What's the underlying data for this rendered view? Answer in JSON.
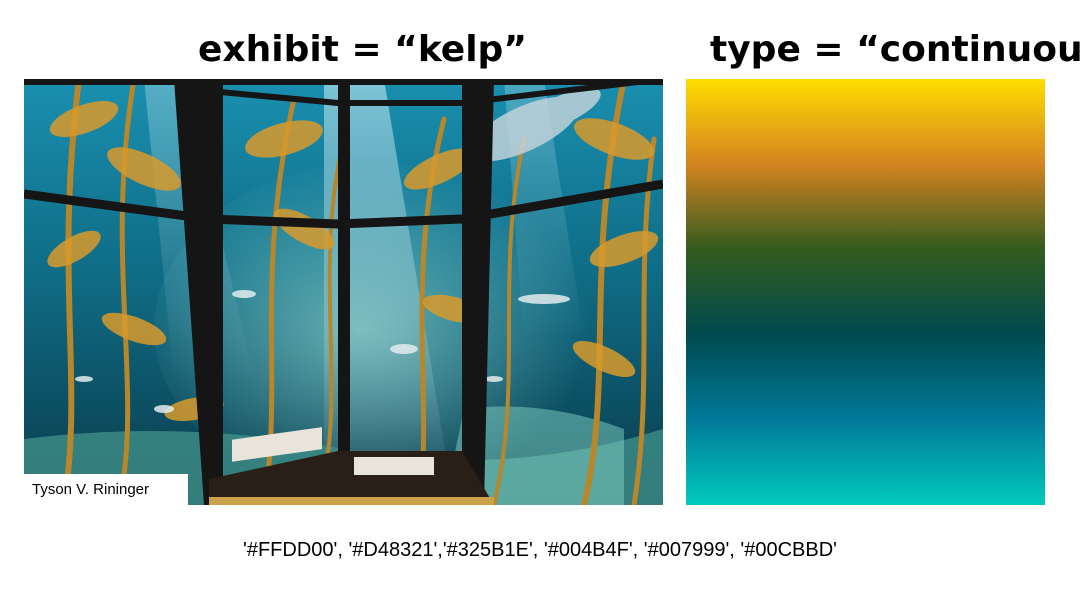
{
  "slide": {
    "title_left": "exhibit =  “kelp”",
    "title_right": "type = “continuous”",
    "photo_credit": "Tyson V. Rininger",
    "hex_list_text": "'#FFDD00', '#D48321','#325B1E', '#004B4F', '#007999', '#00CBBD'",
    "palette": [
      "#FFDD00",
      "#D48321",
      "#325B1E",
      "#004B4F",
      "#007999",
      "#00CBBD"
    ],
    "photo_icon": "kelp-aquarium-photo"
  }
}
